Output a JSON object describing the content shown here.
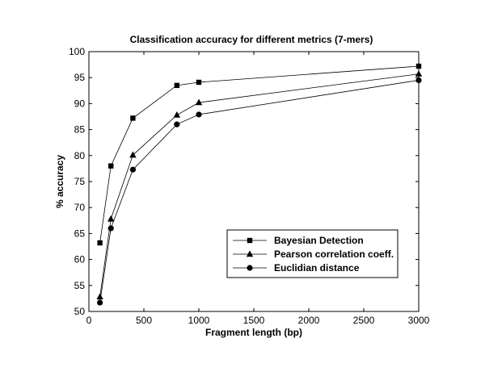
{
  "chart_data": {
    "type": "line",
    "title": "Classification accuracy for different metrics (7-mers)",
    "xlabel": "Fragment length (bp)",
    "ylabel": "% accuracy",
    "xlim": [
      0,
      3000
    ],
    "ylim": [
      50,
      100
    ],
    "xticks": [
      0,
      500,
      1000,
      1500,
      2000,
      2500,
      3000
    ],
    "yticks": [
      50,
      55,
      60,
      65,
      70,
      75,
      80,
      85,
      90,
      95,
      100
    ],
    "grid": false,
    "legend_position": "bottom-right",
    "x": [
      100,
      200,
      400,
      800,
      1000,
      3000
    ],
    "series": [
      {
        "name": "Bayesian Detection",
        "marker": "square",
        "values": [
          63.2,
          78.0,
          87.2,
          93.5,
          94.1,
          97.2
        ]
      },
      {
        "name": "Pearson correlation coeff.",
        "marker": "triangle",
        "values": [
          52.8,
          67.8,
          80.1,
          87.8,
          90.2,
          95.7
        ]
      },
      {
        "name": "Euclidian distance",
        "marker": "circle",
        "values": [
          51.7,
          66.0,
          77.3,
          86.0,
          87.9,
          94.5
        ]
      }
    ]
  }
}
